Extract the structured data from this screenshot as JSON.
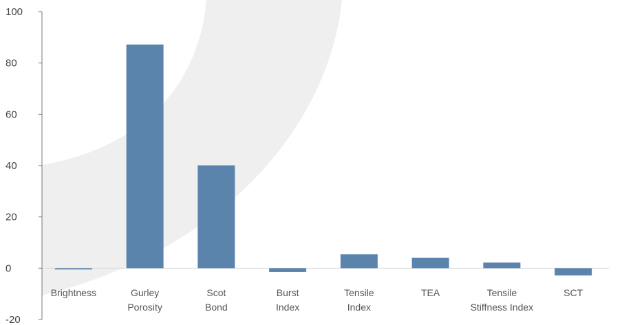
{
  "chart_data": {
    "type": "bar",
    "categories": [
      [
        "Brightness"
      ],
      [
        "Gurley",
        "Porosity"
      ],
      [
        "Scot",
        "Bond"
      ],
      [
        "Burst",
        "Index"
      ],
      [
        "Tensile",
        "Index"
      ],
      [
        "TEA"
      ],
      [
        "Tensile",
        "Stiffness Index"
      ],
      [
        "SCT"
      ]
    ],
    "values": [
      -0.5,
      87.2,
      40.1,
      -1.5,
      5.4,
      4.1,
      2.2,
      -2.8
    ],
    "ylim": [
      -20,
      100
    ],
    "yticks": [
      -20,
      0,
      20,
      40,
      60,
      80,
      100
    ],
    "title": "",
    "xlabel": "",
    "ylabel": "",
    "grid": false,
    "colors": {
      "bar": "#5b84ad",
      "axis": "#777777",
      "zero_line": "#d9d9d9",
      "background_arc": "#efefef"
    }
  }
}
